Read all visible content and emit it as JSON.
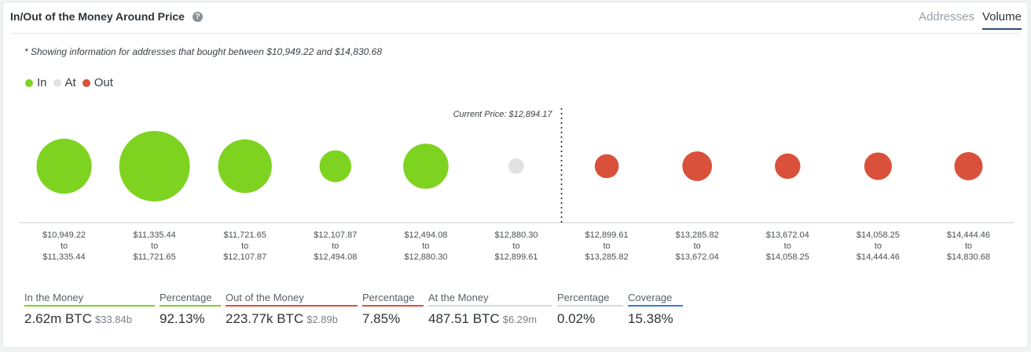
{
  "header": {
    "title": "In/Out of the Money Around Price",
    "help_icon": "question-circle-icon",
    "tabs": [
      {
        "label": "Addresses",
        "active": false
      },
      {
        "label": "Volume",
        "active": true
      }
    ]
  },
  "note": "* Showing information for addresses that bought between $10,949.22 and $14,830.68",
  "legend": [
    {
      "label": "In",
      "color": "#7ed321"
    },
    {
      "label": "At",
      "color": "#e2e2e2"
    },
    {
      "label": "Out",
      "color": "#d9513a"
    }
  ],
  "chart_data": {
    "type": "scatter",
    "current_price_label": "Current Price: $12,894.17",
    "categories": [
      {
        "from": "$10,949.22",
        "to": "$11,335.44",
        "status": "in",
        "relative_size": 0.78
      },
      {
        "from": "$11,335.44",
        "to": "$11,721.65",
        "status": "in",
        "relative_size": 1.0
      },
      {
        "from": "$11,721.65",
        "to": "$12,107.87",
        "status": "in",
        "relative_size": 0.76
      },
      {
        "from": "$12,107.87",
        "to": "$12,494.08",
        "status": "in",
        "relative_size": 0.45
      },
      {
        "from": "$12,494.08",
        "to": "$12,880.30",
        "status": "in",
        "relative_size": 0.64
      },
      {
        "from": "$12,880.30",
        "to": "$12,899.61",
        "status": "at",
        "relative_size": 0.22
      },
      {
        "from": "$12,899.61",
        "to": "$13,285.82",
        "status": "out",
        "relative_size": 0.34
      },
      {
        "from": "$13,285.82",
        "to": "$13,672.04",
        "status": "out",
        "relative_size": 0.42
      },
      {
        "from": "$13,672.04",
        "to": "$14,058.25",
        "status": "out",
        "relative_size": 0.36
      },
      {
        "from": "$14,058.25",
        "to": "$14,444.46",
        "status": "out",
        "relative_size": 0.39
      },
      {
        "from": "$14,444.46",
        "to": "$14,830.68",
        "status": "out",
        "relative_size": 0.4
      }
    ],
    "range_joiner": "to",
    "current_price_after_index": 5
  },
  "stats": [
    {
      "label": "In the Money",
      "value": "2.62m BTC",
      "sub": "$33.84b",
      "color": "#7ed321"
    },
    {
      "label": "Percentage",
      "value": "92.13%",
      "sub": "",
      "color": "#7ed321"
    },
    {
      "label": "Out of the Money",
      "value": "223.77k BTC",
      "sub": "$2.89b",
      "color": "#d9513a"
    },
    {
      "label": "Percentage",
      "value": "7.85%",
      "sub": "",
      "color": "#d9513a"
    },
    {
      "label": "At the Money",
      "value": "487.51 BTC",
      "sub": "$6.29m",
      "color": "#d6d9dc"
    },
    {
      "label": "Percentage",
      "value": "0.02%",
      "sub": "",
      "color": "#d6d9dc"
    },
    {
      "label": "Coverage",
      "value": "15.38%",
      "sub": "",
      "color": "#3a7bd5"
    }
  ]
}
